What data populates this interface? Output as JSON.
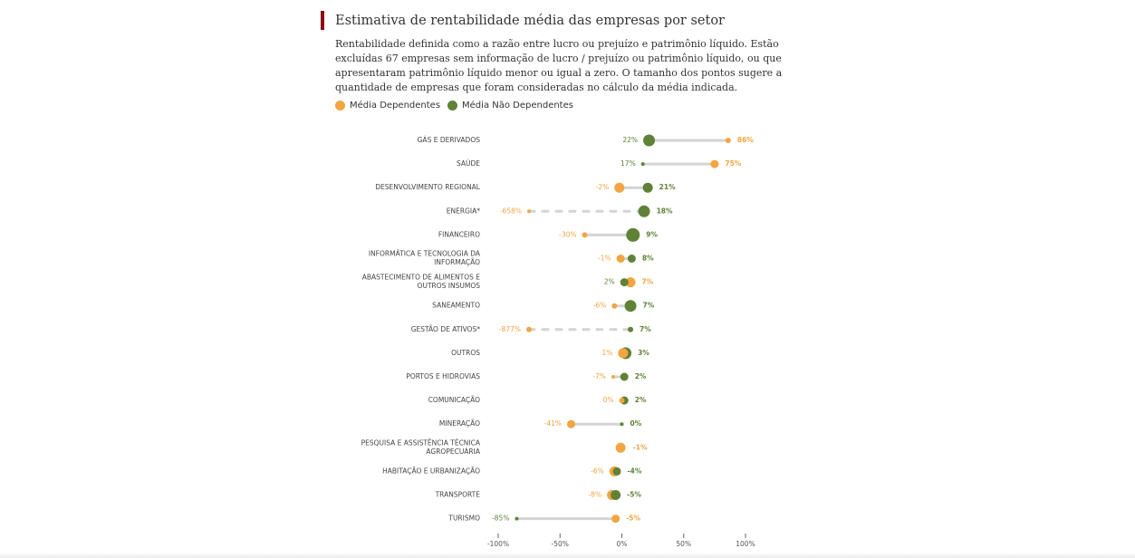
{
  "header": {
    "title": "Estimativa de rentabilidade média das empresas por setor",
    "subtitle": "Rentabilidade definida como a razão entre lucro ou prejuízo e patrimônio líquido. Estão excluídas 67 empresas sem informação de lucro / prejuízo ou patrimônio líquido, ou que apresentaram patrimônio líquido menor ou igual a zero. O tamanho dos pontos sugere a quantidade de empresas que foram consideradas no cálculo da média indicada."
  },
  "legend": {
    "dependent_label": "Média Dependentes",
    "independent_label": "Média Não Dependentes"
  },
  "colors": {
    "dependent": "#f2a541",
    "independent": "#5f8236",
    "accent": "#8b0a14",
    "connector": "#d4d4d4"
  },
  "chart_data": {
    "type": "dumbbell",
    "title": "Estimativa de rentabilidade média das empresas por setor",
    "xlabel": "",
    "ylabel": "",
    "xlim": [
      -100,
      100
    ],
    "xticks": [
      -100,
      -50,
      0,
      50,
      100
    ],
    "xtick_labels": [
      "-100%",
      "-50%",
      "0%",
      "50%",
      "100%"
    ],
    "series": [
      {
        "name": "Média Dependentes",
        "key": "dep"
      },
      {
        "name": "Média Não Dependentes",
        "key": "ind"
      }
    ],
    "rows": [
      {
        "sector": [
          "GÁS E DERIVADOS"
        ],
        "dep": 86,
        "dep_label": "86%",
        "dep_size": 2,
        "ind": 22,
        "ind_label": "22%",
        "ind_size": 5
      },
      {
        "sector": [
          "SAÚDE"
        ],
        "dep": 75,
        "dep_label": "75%",
        "dep_size": 3,
        "ind": 17,
        "ind_label": "17%",
        "ind_size": 1
      },
      {
        "sector": [
          "DESENVOLVIMENTO REGIONAL"
        ],
        "dep": -2,
        "dep_label": "-2%",
        "dep_size": 4,
        "ind": 21,
        "ind_label": "21%",
        "ind_size": 4
      },
      {
        "sector": [
          "ENERGIA*"
        ],
        "dep": -658,
        "dep_label": "-658%",
        "dep_size": 1,
        "ind": 18,
        "ind_label": "18%",
        "ind_size": 5,
        "off_scale": true
      },
      {
        "sector": [
          "FINANCEIRO"
        ],
        "dep": -30,
        "dep_label": "-30%",
        "dep_size": 2,
        "ind": 9,
        "ind_label": "9%",
        "ind_size": 7
      },
      {
        "sector": [
          "INFORMÁTICA E TECNOLOGIA DA",
          "INFORMAÇÃO"
        ],
        "dep": -1,
        "dep_label": "-1%",
        "dep_size": 3,
        "ind": 8,
        "ind_label": "8%",
        "ind_size": 3
      },
      {
        "sector": [
          "ABASTECIMENTO DE ALIMENTOS E",
          "OUTROS INSUMOS"
        ],
        "dep": 7,
        "dep_label": "7%",
        "dep_size": 4,
        "ind": 2,
        "ind_label": "2%",
        "ind_size": 3
      },
      {
        "sector": [
          "SANEAMENTO"
        ],
        "dep": -6,
        "dep_label": "-6%",
        "dep_size": 2,
        "ind": 7,
        "ind_label": "7%",
        "ind_size": 6
      },
      {
        "sector": [
          "GESTÃO DE ATIVOS*"
        ],
        "dep": -877,
        "dep_label": "-877%",
        "dep_size": 2,
        "ind": 7,
        "ind_label": "7%",
        "ind_size": 2,
        "off_scale": true
      },
      {
        "sector": [
          "OUTROS"
        ],
        "dep": 1,
        "dep_label": "1%",
        "dep_size": 4,
        "ind": 3,
        "ind_label": "3%",
        "ind_size": 5
      },
      {
        "sector": [
          "PORTOS E HIDROVIAS"
        ],
        "dep": -7,
        "dep_label": "-7%",
        "dep_size": 1,
        "ind": 2,
        "ind_label": "2%",
        "ind_size": 3
      },
      {
        "sector": [
          "COMUNICAÇÃO"
        ],
        "dep": 0,
        "dep_label": "0%",
        "dep_size": 2,
        "ind": 2,
        "ind_label": "2%",
        "ind_size": 3
      },
      {
        "sector": [
          "MINERAÇÃO"
        ],
        "dep": -41,
        "dep_label": "-41%",
        "dep_size": 3,
        "ind": 0,
        "ind_label": "0%",
        "ind_size": 1
      },
      {
        "sector": [
          "PESQUISA E ASSISTÊNCIA TÉCNICA",
          "AGROPECUÁRIA"
        ],
        "dep": -1,
        "dep_label": "-1%",
        "dep_size": 4,
        "ind": null,
        "ind_label": "",
        "ind_size": 0
      },
      {
        "sector": [
          "HABITAÇÃO E URBANIZAÇÃO"
        ],
        "dep": -6,
        "dep_label": "-6%",
        "dep_size": 4,
        "ind": -4,
        "ind_label": "-4%",
        "ind_size": 3
      },
      {
        "sector": [
          "TRANSPORTE"
        ],
        "dep": -8,
        "dep_label": "-8%",
        "dep_size": 4,
        "ind": -5,
        "ind_label": "-5%",
        "ind_size": 4
      },
      {
        "sector": [
          "TURISMO"
        ],
        "dep": -5,
        "dep_label": "-5%",
        "dep_size": 3,
        "ind": -85,
        "ind_label": "-85%",
        "ind_size": 1
      }
    ]
  }
}
